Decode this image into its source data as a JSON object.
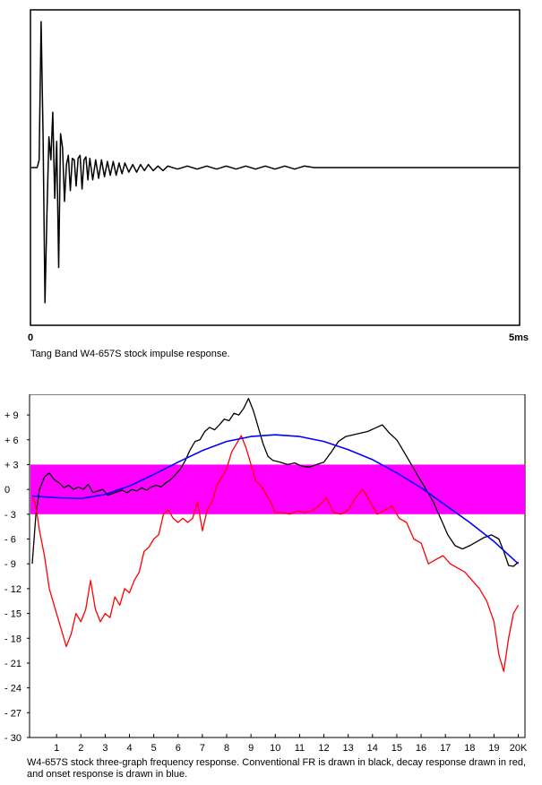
{
  "chart_data": [
    {
      "type": "line",
      "title": "",
      "caption": "Tang Band W4-657S stock impulse response.",
      "x_start_label": "0",
      "x_end_label": "5ms",
      "xlim": [
        0,
        5
      ],
      "ylim": [
        -1,
        1
      ],
      "colors": {
        "trace": "#000000",
        "frame": "#000000"
      },
      "series": [
        {
          "color": "#000000",
          "x": [
            0,
            0.06,
            0.08,
            0.1,
            0.12,
            0.14,
            0.16,
            0.18,
            0.2,
            0.22,
            0.24,
            0.26,
            0.28,
            0.3,
            0.32,
            0.34,
            0.36,
            0.38,
            0.4,
            0.42,
            0.44,
            0.46,
            0.48,
            0.5,
            0.52,
            0.54,
            0.56,
            0.58,
            0.6,
            0.63,
            0.66,
            0.69,
            0.72,
            0.75,
            0.78,
            0.81,
            0.84,
            0.87,
            0.9,
            0.93,
            0.96,
            1.0,
            1.04,
            1.08,
            1.12,
            1.16,
            1.2,
            1.25,
            1.3,
            1.35,
            1.4,
            1.5,
            1.6,
            1.7,
            1.8,
            1.9,
            2.0,
            2.1,
            2.2,
            2.3,
            2.4,
            2.5,
            2.6,
            2.7,
            2.8,
            2.9,
            3.0,
            3.5,
            4.0,
            4.5,
            5.0
          ],
          "y": [
            0,
            0,
            0.05,
            0.95,
            0.2,
            -0.88,
            -0.3,
            0.2,
            0.05,
            0.36,
            -0.2,
            0.17,
            -0.65,
            0.22,
            0.13,
            -0.22,
            0.02,
            0.08,
            -0.15,
            0.06,
            0.05,
            -0.12,
            0.06,
            0.08,
            -0.14,
            0.05,
            0.07,
            -0.08,
            0.06,
            -0.08,
            0.05,
            -0.07,
            0.05,
            -0.06,
            0.04,
            -0.05,
            0.04,
            -0.05,
            0.03,
            -0.04,
            0.03,
            -0.03,
            0.02,
            -0.03,
            0.02,
            -0.02,
            0.02,
            -0.02,
            0.01,
            -0.02,
            0.01,
            -0.01,
            0.01,
            -0.01,
            0.01,
            -0.01,
            0.01,
            -0.01,
            0.01,
            -0.01,
            0.01,
            -0.01,
            0.01,
            -0.01,
            0.01,
            0,
            0,
            0,
            0,
            0,
            0
          ]
        }
      ]
    },
    {
      "type": "line",
      "title": "",
      "caption": "W4-657S stock three-graph frequency response.  Conventional FR is drawn in black, decay response drawn in red, and onset response is drawn in blue.",
      "x_tick_labels": [
        "1",
        "2",
        "3",
        "4",
        "5",
        "6",
        "7",
        "8",
        "9",
        "10",
        "11",
        "12",
        "13",
        "14",
        "15",
        "16",
        "17",
        "18",
        "19",
        "20K"
      ],
      "y_tick_labels": [
        "+ 9",
        "+ 6",
        "+ 3",
        "0",
        "- 3",
        "- 6",
        "- 9",
        "- 12",
        "- 15",
        "- 18",
        "- 21",
        "- 24",
        "- 27",
        "- 30"
      ],
      "y_ticks": [
        9,
        6,
        3,
        0,
        -3,
        -6,
        -9,
        -12,
        -15,
        -18,
        -21,
        -24,
        -27,
        -30
      ],
      "xlim": [
        0,
        20.2
      ],
      "ylim": [
        -30,
        11.5
      ],
      "band": {
        "from": -3,
        "to": 3,
        "color": "#ff00ff"
      },
      "series": [
        {
          "color": "#000000",
          "x": [
            0,
            0.15,
            0.3,
            0.5,
            0.7,
            0.9,
            1.1,
            1.3,
            1.5,
            1.7,
            1.9,
            2.1,
            2.3,
            2.5,
            2.7,
            2.9,
            3.1,
            3.3,
            3.5,
            3.7,
            3.9,
            4.1,
            4.3,
            4.5,
            4.7,
            4.9,
            5.1,
            5.3,
            5.5,
            5.7,
            5.9,
            6.1,
            6.3,
            6.5,
            6.7,
            6.9,
            7.1,
            7.3,
            7.5,
            7.7,
            7.9,
            8.1,
            8.3,
            8.5,
            8.7,
            8.9,
            9.1,
            9.3,
            9.5,
            9.7,
            9.9,
            10.2,
            10.5,
            10.8,
            11.1,
            11.4,
            11.7,
            12.0,
            12.3,
            12.6,
            12.9,
            13.2,
            13.5,
            13.8,
            14.1,
            14.4,
            14.7,
            15.0,
            15.3,
            15.6,
            15.9,
            16.2,
            16.5,
            16.8,
            17.1,
            17.4,
            17.7,
            18.0,
            18.3,
            18.6,
            18.9,
            19.2,
            19.4,
            19.6,
            19.8,
            20.0
          ],
          "y": [
            -9,
            -3,
            0,
            1.5,
            2,
            1.2,
            0.8,
            0.2,
            0.5,
            0,
            0.3,
            0,
            0.6,
            -0.4,
            -0.2,
            0,
            -0.7,
            -0.5,
            -0.3,
            -0.1,
            -0.4,
            0,
            -0.2,
            0.2,
            -0.1,
            0.3,
            0.5,
            0.3,
            0.8,
            1.2,
            1.8,
            2.5,
            3.5,
            4.8,
            5.8,
            6,
            7,
            7.5,
            7.2,
            7.8,
            8.5,
            8.3,
            9.2,
            9,
            9.8,
            11,
            9.5,
            7.5,
            5.5,
            4,
            3.5,
            3.3,
            3,
            3.2,
            2.8,
            2.7,
            3,
            3.3,
            4.5,
            5.8,
            6.4,
            6.6,
            6.8,
            7,
            7.4,
            7.8,
            6.8,
            6,
            4.5,
            3,
            1.5,
            0,
            -1.5,
            -3.5,
            -5.5,
            -6.8,
            -7.2,
            -6.8,
            -6.3,
            -5.8,
            -5.5,
            -6,
            -7.5,
            -9.2,
            -9.3,
            -8.8
          ]
        },
        {
          "color": "#ff0000",
          "x": [
            0,
            0.1,
            0.2,
            0.3,
            0.5,
            0.7,
            0.9,
            1.0,
            1.2,
            1.4,
            1.6,
            1.8,
            2.0,
            2.2,
            2.4,
            2.6,
            2.8,
            3.0,
            3.2,
            3.4,
            3.6,
            3.8,
            4.0,
            4.2,
            4.4,
            4.6,
            4.8,
            5.0,
            5.2,
            5.4,
            5.6,
            5.8,
            6.0,
            6.2,
            6.4,
            6.6,
            6.8,
            7.0,
            7.2,
            7.4,
            7.6,
            7.8,
            8.0,
            8.2,
            8.4,
            8.6,
            8.8,
            9.0,
            9.2,
            9.4,
            9.6,
            9.8,
            10.0,
            10.3,
            10.6,
            10.9,
            11.2,
            11.5,
            11.8,
            12.1,
            12.4,
            12.7,
            13.0,
            13.3,
            13.6,
            13.9,
            14.2,
            14.5,
            14.8,
            15.1,
            15.4,
            15.7,
            16.0,
            16.3,
            16.6,
            16.9,
            17.2,
            17.5,
            17.8,
            18.1,
            18.4,
            18.7,
            19.0,
            19.2,
            19.4,
            19.6,
            19.8,
            20.0
          ],
          "y": [
            -1,
            -1.5,
            -3,
            -5,
            -8,
            -12,
            -14,
            -15,
            -17,
            -19,
            -17.5,
            -15,
            -16,
            -14.5,
            -11,
            -14.5,
            -16,
            -15,
            -15.5,
            -13,
            -14,
            -12,
            -12.5,
            -11,
            -10,
            -7.5,
            -7,
            -6,
            -5.5,
            -3,
            -2.5,
            -3.5,
            -4,
            -3.5,
            -4,
            -3.5,
            -1.5,
            -5,
            -2.5,
            -1.5,
            0.5,
            1.5,
            2.5,
            4.5,
            5.5,
            6.5,
            5,
            3,
            1,
            0.5,
            -0.5,
            -1.5,
            -2.8,
            -2.8,
            -3,
            -2.6,
            -2.8,
            -2.6,
            -2,
            -1,
            -2.8,
            -3,
            -2.5,
            -1,
            0,
            -1.5,
            -3,
            -2.5,
            -2,
            -3.5,
            -4,
            -6,
            -6.5,
            -9,
            -8.5,
            -8,
            -9,
            -9.5,
            -10,
            -11,
            -12,
            -13.5,
            -16,
            -20,
            -22,
            -18,
            -15,
            -14
          ]
        },
        {
          "color": "#0000ff",
          "x": [
            0,
            1,
            2,
            3,
            4,
            5,
            6,
            7,
            8,
            9,
            10,
            11,
            12,
            13,
            14,
            15,
            16,
            17,
            18,
            19,
            20
          ],
          "y": [
            -0.8,
            -1,
            -1.1,
            -0.6,
            0.4,
            1.8,
            3.3,
            4.7,
            5.8,
            6.4,
            6.6,
            6.4,
            5.8,
            4.8,
            3.6,
            2,
            0.2,
            -1.9,
            -4,
            -6.3,
            -9
          ]
        }
      ]
    }
  ]
}
